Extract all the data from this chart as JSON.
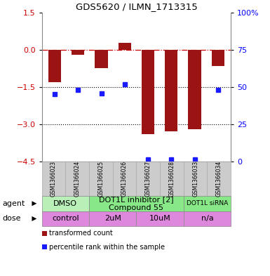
{
  "title": "GDS5620 / ILMN_1713315",
  "samples": [
    "GSM1366023",
    "GSM1366024",
    "GSM1366025",
    "GSM1366026",
    "GSM1366027",
    "GSM1366028",
    "GSM1366033",
    "GSM1366034"
  ],
  "bar_values": [
    -1.3,
    -0.2,
    -0.75,
    0.28,
    -3.4,
    -3.3,
    -3.2,
    -0.65
  ],
  "dot_values": [
    -1.78,
    -1.62,
    -1.75,
    -1.38,
    -4.42,
    -4.42,
    -4.42,
    -1.62
  ],
  "ylim": [
    -4.5,
    1.5
  ],
  "yticks_left": [
    1.5,
    0,
    -1.5,
    -3,
    -4.5
  ],
  "yticks_right_vals": [
    1.5,
    0,
    -1.5,
    -3,
    -4.5
  ],
  "yticks_right_labels": [
    "100%",
    "75",
    "50",
    "25",
    "0"
  ],
  "hline_y": 0,
  "dotted_lines": [
    -1.5,
    -3
  ],
  "bar_color": "#9b1313",
  "dot_color": "#1a1aff",
  "agent_groups": [
    {
      "label": "DMSO",
      "start": 0,
      "end": 2,
      "color": "#b8f0b8",
      "fontsize": 8
    },
    {
      "label": "DOT1L inhibitor [2]\nCompound 55",
      "start": 2,
      "end": 6,
      "color": "#88e888",
      "fontsize": 8
    },
    {
      "label": "DOT1L siRNA",
      "start": 6,
      "end": 8,
      "color": "#88e888",
      "fontsize": 6.5
    }
  ],
  "dose_groups": [
    {
      "label": "control",
      "start": 0,
      "end": 2,
      "color": "#dd88dd"
    },
    {
      "label": "2uM",
      "start": 2,
      "end": 4,
      "color": "#dd88dd"
    },
    {
      "label": "10uM",
      "start": 4,
      "end": 6,
      "color": "#dd88dd"
    },
    {
      "label": "n/a",
      "start": 6,
      "end": 8,
      "color": "#dd88dd"
    }
  ],
  "legend_items": [
    {
      "color": "#9b1313",
      "label": "transformed count"
    },
    {
      "color": "#1a1aff",
      "label": "percentile rank within the sample"
    }
  ],
  "label_agent": "agent",
  "label_dose": "dose",
  "bar_color_red": "#9b1313",
  "dot_color_blue": "#1a1aff",
  "dashed_line_color": "#cc0000",
  "sample_bg_color": "#cccccc",
  "sample_border_color": "#aaaaaa",
  "table_border_color": "#888888"
}
